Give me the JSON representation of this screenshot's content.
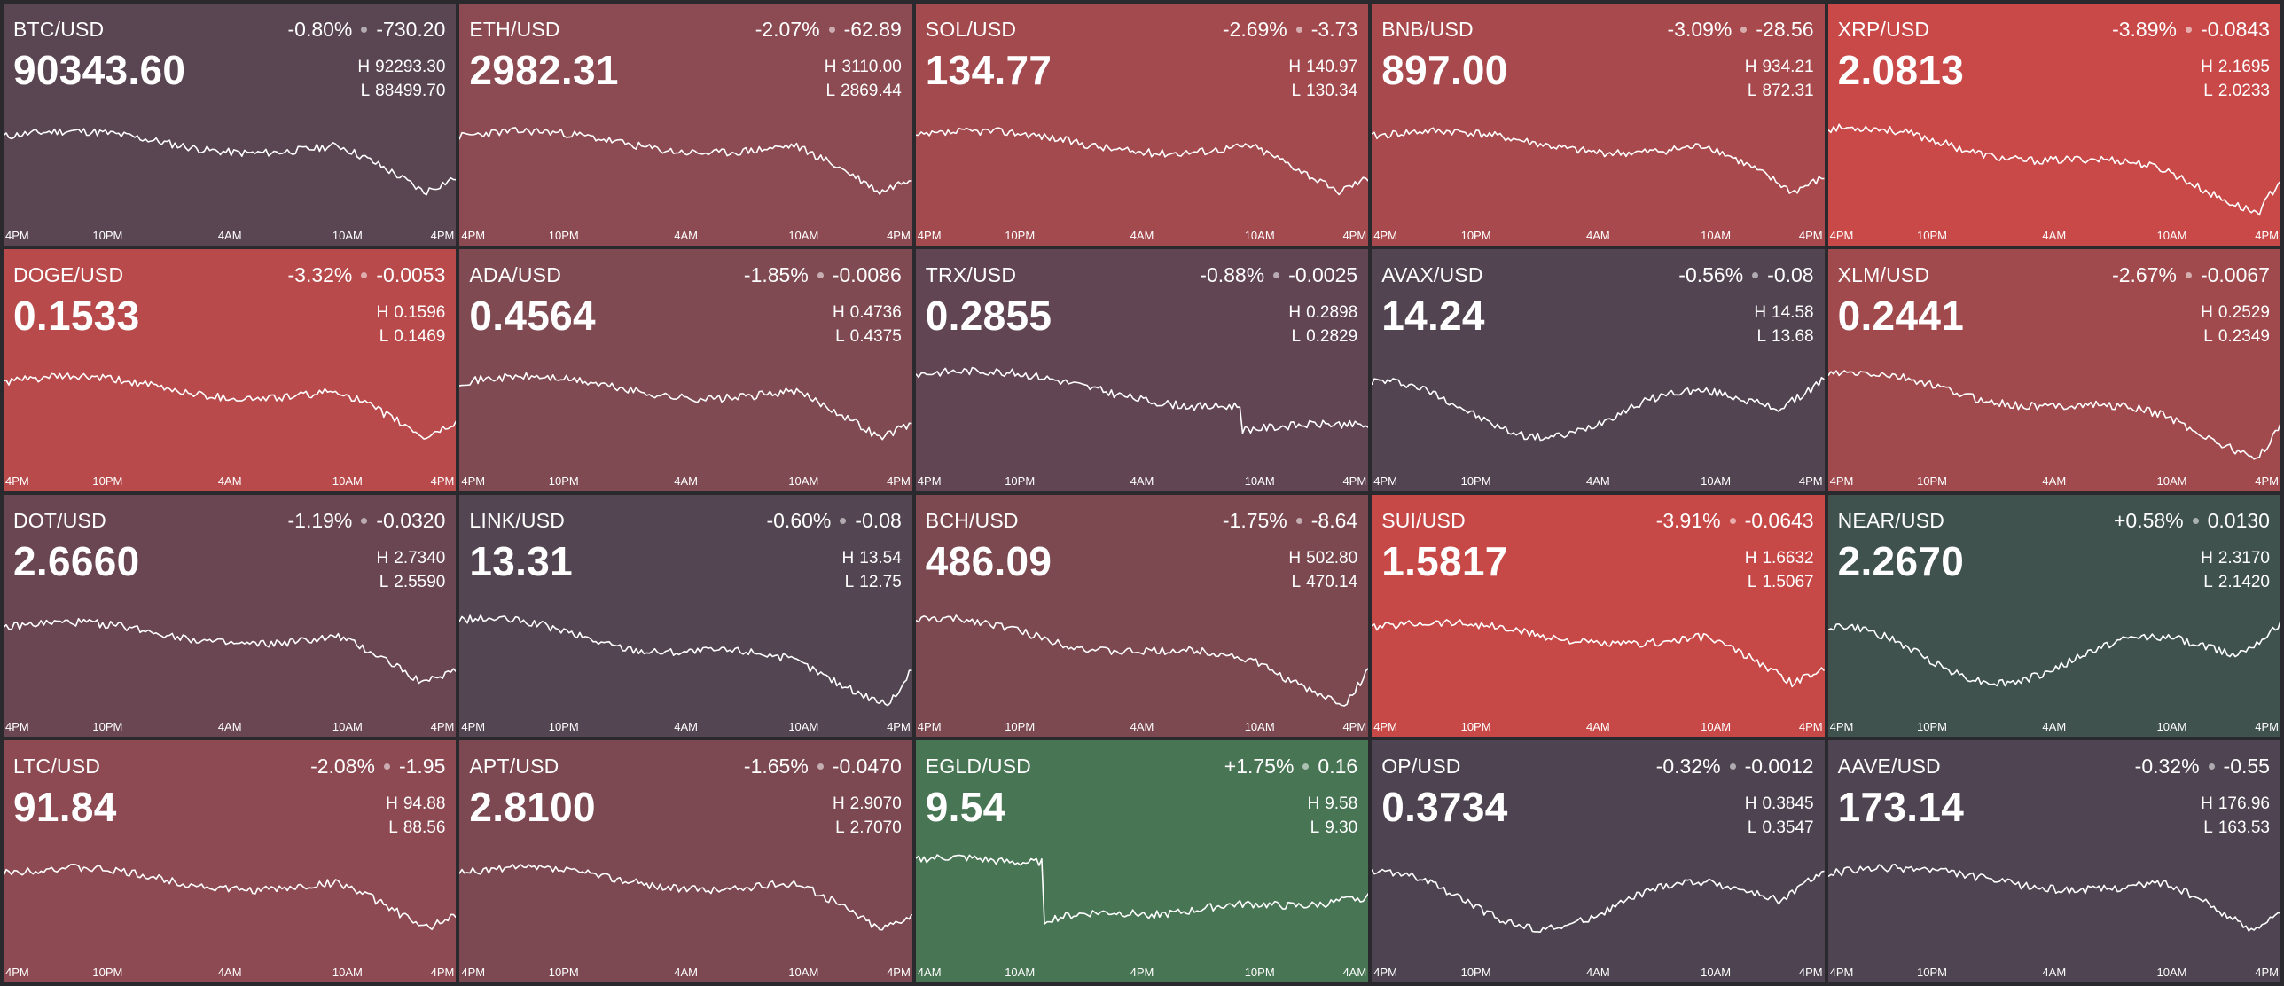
{
  "colors": {
    "background": "#2a2a2e",
    "neutral": "#524451",
    "negative_strong": "#c94947",
    "negative_mid": "#a34a4c",
    "negative_light": "#884a52",
    "positive_green": "#497553",
    "positive_dark": "#3f524d",
    "line": "#ffffff"
  },
  "tiles": [
    {
      "pair": "BTC/USD",
      "pct": "-0.80%",
      "chg": "-730.20",
      "price": "90343.60",
      "high": "92293.30",
      "low": "88499.70",
      "color": "#5a4552",
      "axis": [
        "4PM",
        "10PM",
        "4AM",
        "10AM",
        "4PM"
      ],
      "seed": 11,
      "shape": "down"
    },
    {
      "pair": "ETH/USD",
      "pct": "-2.07%",
      "chg": "-62.89",
      "price": "2982.31",
      "high": "3110.00",
      "low": "2869.44",
      "color": "#8c4b53",
      "axis": [
        "4PM",
        "10PM",
        "4AM",
        "10AM",
        "4PM"
      ],
      "seed": 23,
      "shape": "down"
    },
    {
      "pair": "SOL/USD",
      "pct": "-2.69%",
      "chg": "-3.73",
      "price": "134.77",
      "high": "140.97",
      "low": "130.34",
      "color": "#a24a4e",
      "axis": [
        "4PM",
        "10PM",
        "4AM",
        "10AM",
        "4PM"
      ],
      "seed": 37,
      "shape": "down"
    },
    {
      "pair": "BNB/USD",
      "pct": "-3.09%",
      "chg": "-28.56",
      "price": "897.00",
      "high": "934.21",
      "low": "872.31",
      "color": "#a84a4d",
      "axis": [
        "4PM",
        "10PM",
        "4AM",
        "10AM",
        "4PM"
      ],
      "seed": 41,
      "shape": "down"
    },
    {
      "pair": "XRP/USD",
      "pct": "-3.89%",
      "chg": "-0.0843",
      "price": "2.0813",
      "high": "2.1695",
      "low": "2.0233",
      "color": "#c84948",
      "axis": [
        "4PM",
        "10PM",
        "4AM",
        "10AM",
        "4PM"
      ],
      "seed": 53,
      "shape": "slide"
    },
    {
      "pair": "DOGE/USD",
      "pct": "-3.32%",
      "chg": "-0.0053",
      "price": "0.1533",
      "high": "0.1596",
      "low": "0.1469",
      "color": "#b84a4b",
      "axis": [
        "4PM",
        "10PM",
        "4AM",
        "10AM",
        "4PM"
      ],
      "seed": 61,
      "shape": "down"
    },
    {
      "pair": "ADA/USD",
      "pct": "-1.85%",
      "chg": "-0.0086",
      "price": "0.4564",
      "high": "0.4736",
      "low": "0.4375",
      "color": "#7f4a52",
      "axis": [
        "4PM",
        "10PM",
        "4AM",
        "10AM",
        "4PM"
      ],
      "seed": 71,
      "shape": "down"
    },
    {
      "pair": "TRX/USD",
      "pct": "-0.88%",
      "chg": "-0.0025",
      "price": "0.2855",
      "high": "0.2898",
      "low": "0.2829",
      "color": "#614552",
      "axis": [
        "4PM",
        "10PM",
        "4AM",
        "10AM",
        "4PM"
      ],
      "seed": 83,
      "shape": "step"
    },
    {
      "pair": "AVAX/USD",
      "pct": "-0.56%",
      "chg": "-0.08",
      "price": "14.24",
      "high": "14.58",
      "low": "13.68",
      "color": "#524451",
      "axis": [
        "4PM",
        "10PM",
        "4AM",
        "10AM",
        "4PM"
      ],
      "seed": 97,
      "shape": "wave"
    },
    {
      "pair": "XLM/USD",
      "pct": "-2.67%",
      "chg": "-0.0067",
      "price": "0.2441",
      "high": "0.2529",
      "low": "0.2349",
      "color": "#a04a4e",
      "axis": [
        "4PM",
        "10PM",
        "4AM",
        "10AM",
        "4PM"
      ],
      "seed": 103,
      "shape": "slide"
    },
    {
      "pair": "DOT/USD",
      "pct": "-1.19%",
      "chg": "-0.0320",
      "price": "2.6660",
      "high": "2.7340",
      "low": "2.5590",
      "color": "#6a4652",
      "axis": [
        "4PM",
        "10PM",
        "4AM",
        "10AM",
        "4PM"
      ],
      "seed": 109,
      "shape": "down"
    },
    {
      "pair": "LINK/USD",
      "pct": "-0.60%",
      "chg": "-0.08",
      "price": "13.31",
      "high": "13.54",
      "low": "12.75",
      "color": "#534551",
      "axis": [
        "4PM",
        "10PM",
        "4AM",
        "10AM",
        "4PM"
      ],
      "seed": 127,
      "shape": "slide"
    },
    {
      "pair": "BCH/USD",
      "pct": "-1.75%",
      "chg": "-8.64",
      "price": "486.09",
      "high": "502.80",
      "low": "470.14",
      "color": "#7c4951",
      "axis": [
        "4PM",
        "10PM",
        "4AM",
        "10AM",
        "4PM"
      ],
      "seed": 131,
      "shape": "slide"
    },
    {
      "pair": "SUI/USD",
      "pct": "-3.91%",
      "chg": "-0.0643",
      "price": "1.5817",
      "high": "1.6632",
      "low": "1.5067",
      "color": "#c74947",
      "axis": [
        "4PM",
        "10PM",
        "4AM",
        "10AM",
        "4PM"
      ],
      "seed": 139,
      "shape": "down"
    },
    {
      "pair": "NEAR/USD",
      "pct": "+0.58%",
      "chg": "0.0130",
      "price": "2.2670",
      "high": "2.3170",
      "low": "2.1420",
      "color": "#3f524e",
      "axis": [
        "4PM",
        "10PM",
        "4AM",
        "10AM",
        "4PM"
      ],
      "seed": 149,
      "shape": "wave"
    },
    {
      "pair": "LTC/USD",
      "pct": "-2.08%",
      "chg": "-1.95",
      "price": "91.84",
      "high": "94.88",
      "low": "88.56",
      "color": "#8d4a52",
      "axis": [
        "4PM",
        "10PM",
        "4AM",
        "10AM",
        "4PM"
      ],
      "seed": 151,
      "shape": "down"
    },
    {
      "pair": "APT/USD",
      "pct": "-1.65%",
      "chg": "-0.0470",
      "price": "2.8100",
      "high": "2.9070",
      "low": "2.7070",
      "color": "#7c4952",
      "axis": [
        "4PM",
        "10PM",
        "4AM",
        "10AM",
        "4PM"
      ],
      "seed": 157,
      "shape": "down"
    },
    {
      "pair": "EGLD/USD",
      "pct": "+1.75%",
      "chg": "0.16",
      "price": "9.54",
      "high": "9.58",
      "low": "9.30",
      "color": "#487554",
      "axis": [
        "4AM",
        "10AM",
        "4PM",
        "10PM",
        "4AM"
      ],
      "seed": 163,
      "shape": "drop"
    },
    {
      "pair": "OP/USD",
      "pct": "-0.32%",
      "chg": "-0.0012",
      "price": "0.3734",
      "high": "0.3845",
      "low": "0.3547",
      "color": "#4e4451",
      "axis": [
        "4PM",
        "10PM",
        "4AM",
        "10AM",
        "4PM"
      ],
      "seed": 167,
      "shape": "wave"
    },
    {
      "pair": "AAVE/USD",
      "pct": "-0.32%",
      "chg": "-0.55",
      "price": "173.14",
      "high": "176.96",
      "low": "163.53",
      "color": "#4f4451",
      "axis": [
        "4PM",
        "10PM",
        "4AM",
        "10AM",
        "4PM"
      ],
      "seed": 173,
      "shape": "down"
    }
  ]
}
